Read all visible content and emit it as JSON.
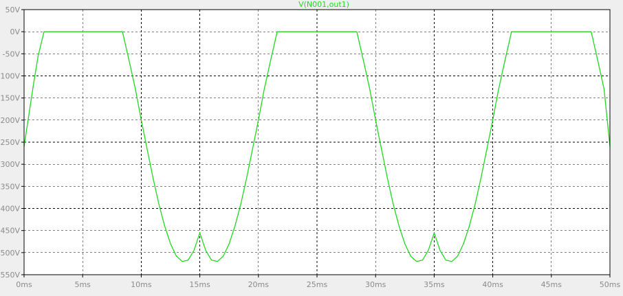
{
  "chart_data": {
    "type": "line",
    "title": "V(N001,out1)",
    "xlabel": "",
    "ylabel": "",
    "x_unit": "ms",
    "y_unit": "V",
    "xlim": [
      0,
      50
    ],
    "ylim": [
      -550,
      50
    ],
    "x_ticks": [
      0,
      5,
      10,
      15,
      20,
      25,
      30,
      35,
      40,
      45,
      50
    ],
    "y_ticks": [
      50,
      0,
      -50,
      -100,
      -150,
      -200,
      -250,
      -300,
      -350,
      -400,
      -450,
      -500,
      -550
    ],
    "x_tick_labels": [
      "0ms",
      "5ms",
      "10ms",
      "15ms",
      "20ms",
      "25ms",
      "30ms",
      "35ms",
      "40ms",
      "45ms",
      "50ms"
    ],
    "y_tick_labels": [
      "50V",
      "0V",
      "-50V",
      "-100V",
      "-150V",
      "-200V",
      "-250V",
      "-300V",
      "-350V",
      "-400V",
      "-450V",
      "-500V",
      "-550V"
    ],
    "grid": true,
    "series": [
      {
        "name": "V(N001,out1)",
        "color": "#1fd81f",
        "x": [
          0,
          0.4,
          0.8,
          1.2,
          1.7,
          2,
          3,
          4,
          5,
          6,
          7,
          8,
          8.4,
          9,
          9.5,
          10,
          10.5,
          11,
          11.5,
          12,
          12.5,
          13,
          13.5,
          14,
          14.5,
          15,
          15.5,
          16,
          16.5,
          17,
          17.5,
          18,
          18.5,
          19,
          19.5,
          20,
          20.5,
          21,
          21.6,
          22,
          23,
          24,
          25,
          26,
          27,
          28,
          28.4,
          29,
          29.5,
          30,
          30.5,
          31,
          31.5,
          32,
          32.5,
          33,
          33.5,
          34,
          34.5,
          35,
          35.5,
          36,
          36.5,
          37,
          37.5,
          38,
          38.5,
          39,
          39.5,
          40,
          40.5,
          41,
          41.6,
          42,
          43,
          44,
          45,
          46,
          47,
          48,
          48.4,
          49,
          49.5,
          50
        ],
        "y": [
          -260,
          -190,
          -120,
          -55,
          0,
          0,
          0,
          0,
          0,
          0,
          0,
          0,
          0,
          -70,
          -130,
          -200,
          -265,
          -330,
          -390,
          -440,
          -480,
          -508,
          -520,
          -517,
          -495,
          -455,
          -495,
          -517,
          -520,
          -508,
          -480,
          -440,
          -390,
          -330,
          -265,
          -200,
          -130,
          -70,
          0,
          0,
          0,
          0,
          0,
          0,
          0,
          0,
          0,
          -70,
          -130,
          -200,
          -265,
          -330,
          -390,
          -440,
          -480,
          -508,
          -520,
          -517,
          -495,
          -455,
          -495,
          -517,
          -520,
          -508,
          -480,
          -440,
          -390,
          -330,
          -265,
          -200,
          -130,
          -70,
          0,
          0,
          0,
          0,
          0,
          0,
          0,
          0,
          0,
          -70,
          -130,
          -260
        ]
      }
    ]
  },
  "colors": {
    "background": "#efefef",
    "plot_background": "#ffffff",
    "frame": "#000000",
    "grid": "#000000",
    "tick_text": "#8a8a8a",
    "title": "#1fd81f"
  }
}
